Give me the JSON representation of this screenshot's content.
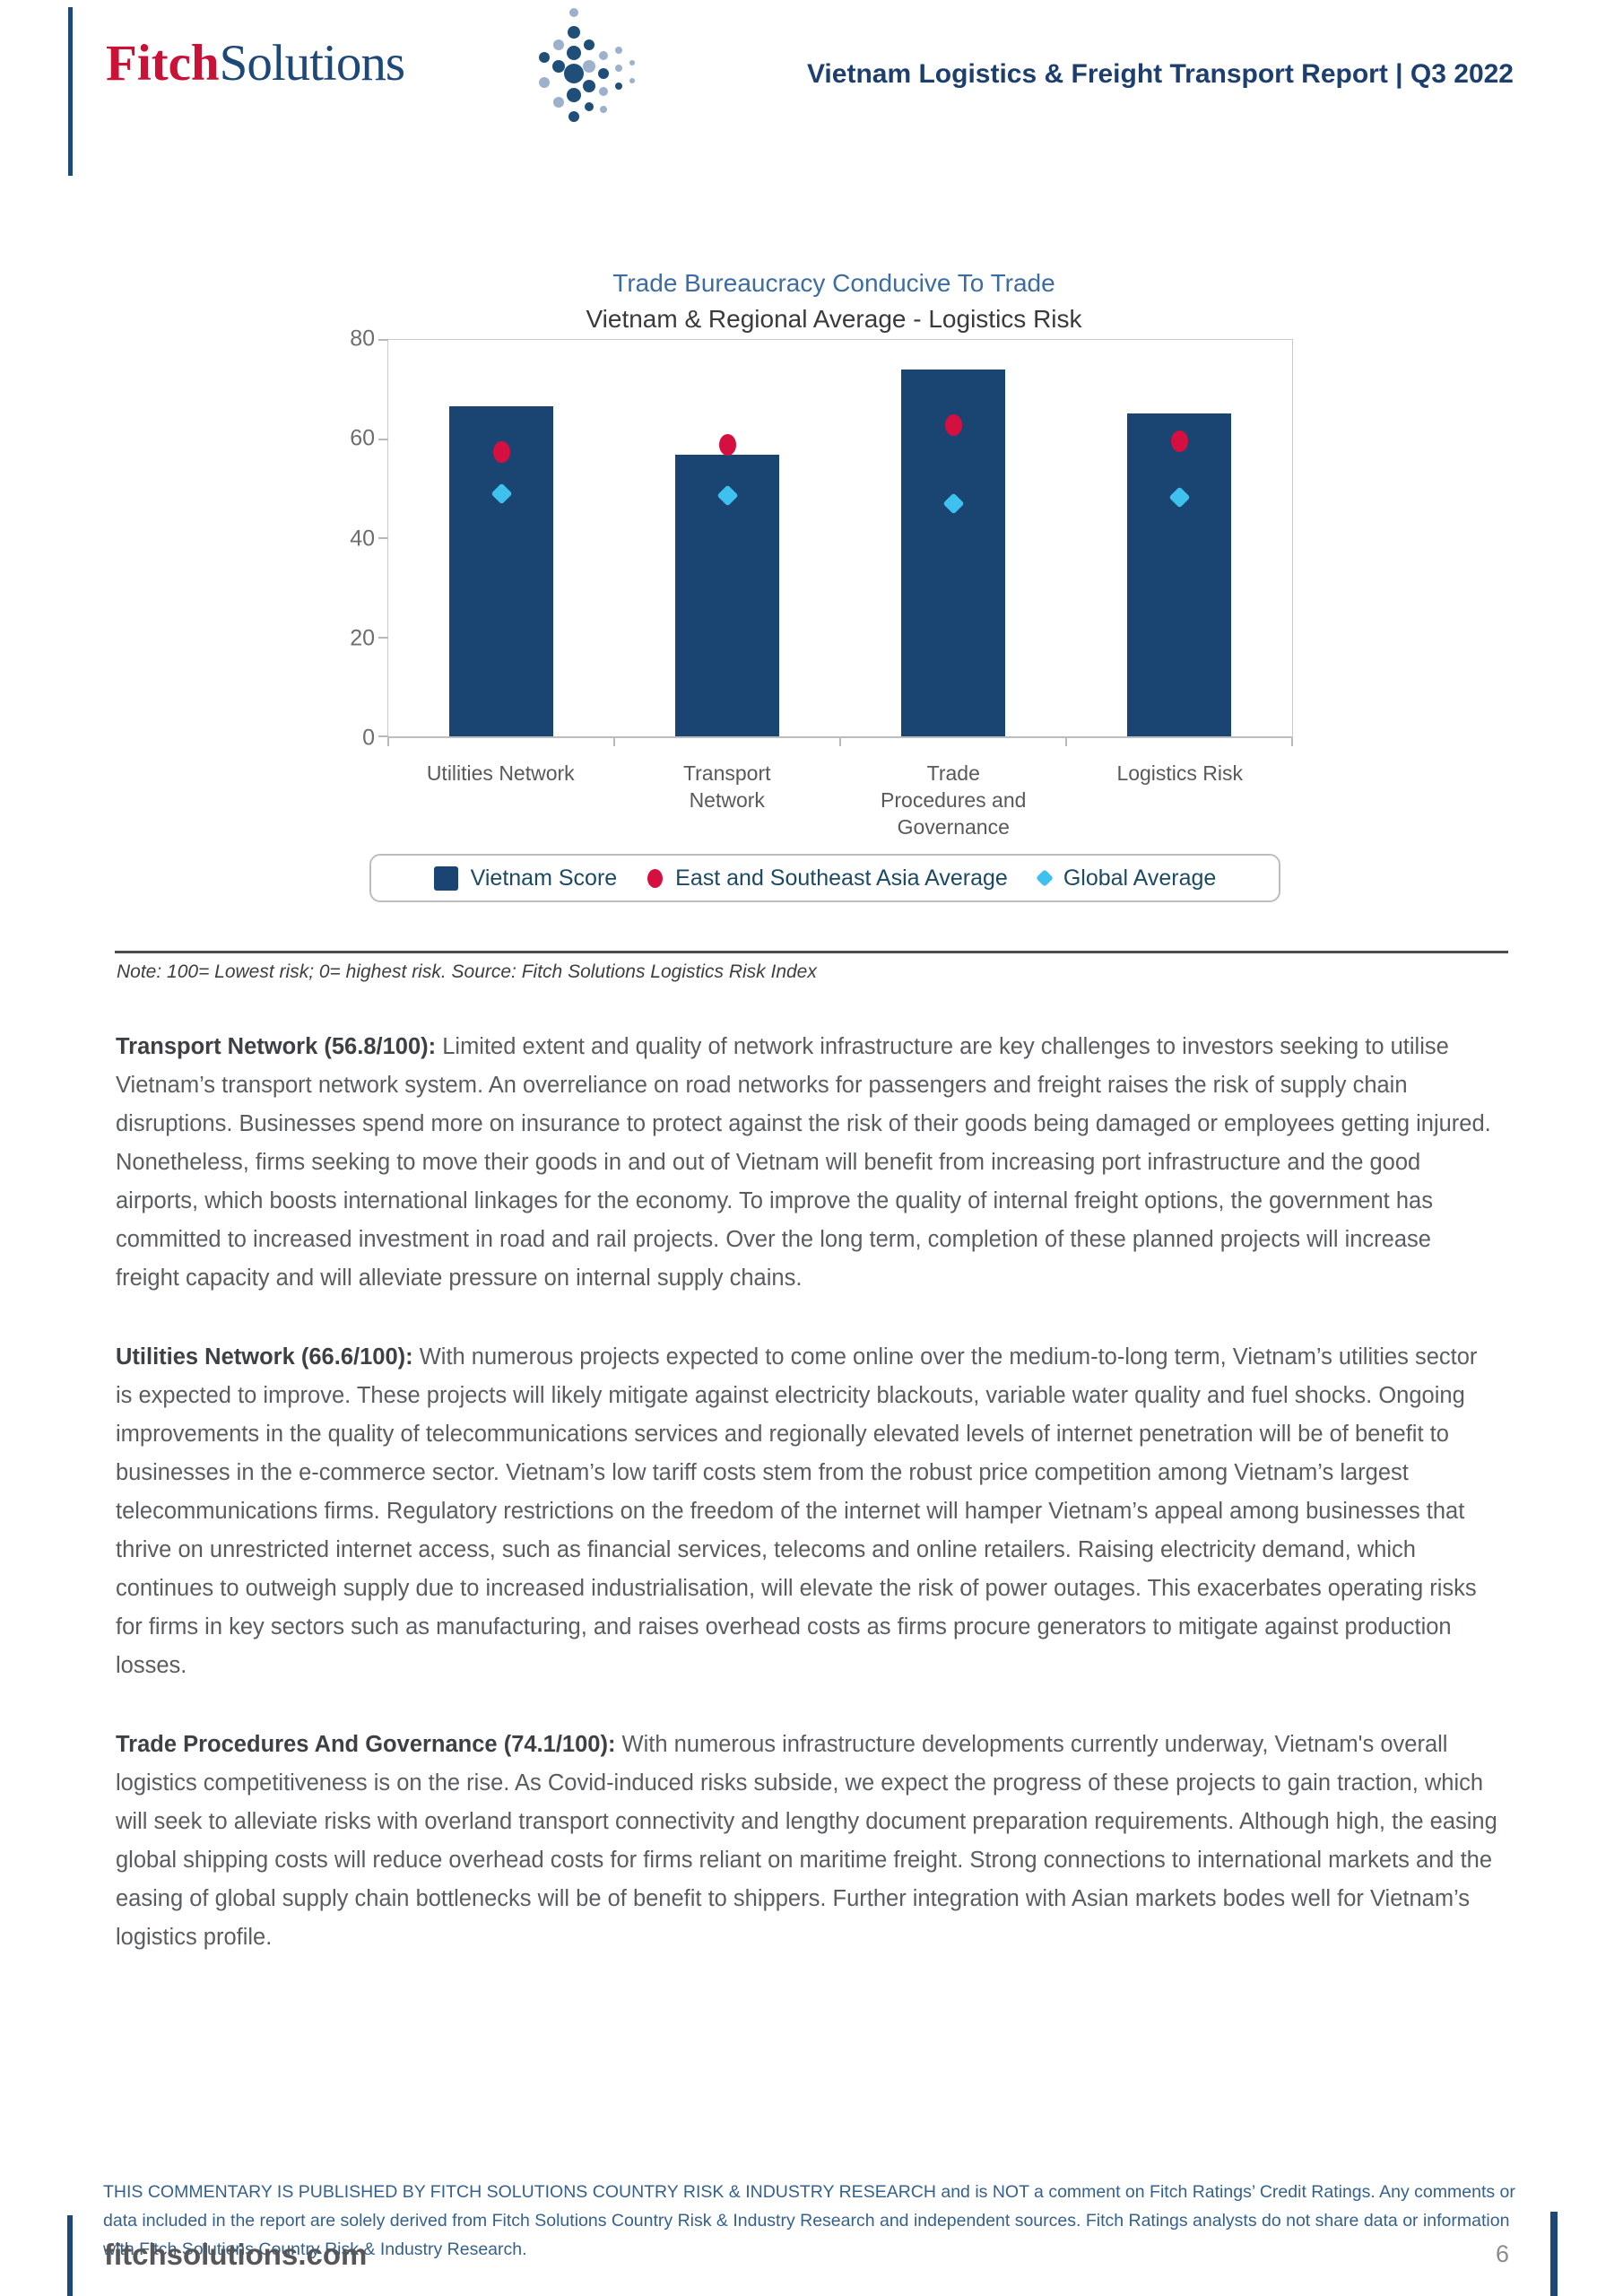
{
  "header": {
    "logo_fitch": "Fitch",
    "logo_solutions": "Solutions",
    "report_title": "Vietnam Logistics & Freight Transport Report | Q3 2022"
  },
  "chart": {
    "title": "Trade Bureaucracy Conducive To Trade",
    "subtitle": "Vietnam & Regional Average - Logistics Risk",
    "note": "Note: 100= Lowest risk; 0= highest risk. Source: Fitch Solutions Logistics Risk Index"
  },
  "chart_data": {
    "type": "bar",
    "title": "Trade Bureaucracy Conducive To Trade",
    "subtitle": "Vietnam & Regional Average - Logistics Risk",
    "categories": [
      "Utilities Network",
      "Transport\nNetwork",
      "Trade\nProcedures and\nGovernance",
      "Logistics Risk"
    ],
    "series": [
      {
        "name": "Vietnam Score",
        "type": "bar",
        "color": "#1a4573",
        "values": [
          66.6,
          56.8,
          74.1,
          65.2
        ]
      },
      {
        "name": "East and Southeast Asia Average",
        "type": "point-circle",
        "color": "#d50f3f",
        "values": [
          57.3,
          58.8,
          62.8,
          59.5
        ]
      },
      {
        "name": "Global Average",
        "type": "point-diamond",
        "color": "#3fc1ef",
        "values": [
          49.0,
          48.6,
          46.9,
          48.3
        ]
      }
    ],
    "ylim": [
      0,
      80
    ],
    "yticks": [
      0,
      20,
      40,
      60,
      80
    ],
    "legend_position": "bottom",
    "grid": false
  },
  "sections": [
    {
      "heading": "Transport Network (56.8/100):",
      "body": "Limited extent and quality of network infrastructure are key challenges to investors seeking to utilise Vietnam’s transport network system. An overreliance on road networks for passengers and freight raises the risk of supply chain disruptions. Businesses spend more on insurance to protect against the risk of their goods being damaged or employees getting injured. Nonetheless, firms seeking to move their goods in and out of Vietnam will benefit from increasing port infrastructure and the good airports, which boosts international linkages for the economy. To improve the quality of internal freight options, the government has committed to increased investment in road and rail projects. Over the long term, completion of these planned projects will increase freight capacity and will alleviate pressure on internal supply chains."
    },
    {
      "heading": "Utilities Network (66.6/100):",
      "body": "With numerous projects expected to come online over the medium-to-long term, Vietnam’s utilities sector is expected to improve. These projects will likely mitigate against electricity blackouts, variable water quality and fuel shocks. Ongoing improvements in the quality of telecommunications services and regionally elevated levels of internet penetration will be of benefit to businesses in the e-commerce sector. Vietnam’s low tariff costs stem from the robust price competition among Vietnam’s largest telecommunications firms. Regulatory restrictions on the freedom of the internet will hamper Vietnam’s appeal among businesses that thrive on unrestricted internet access, such as financial services, telecoms and online retailers. Raising electricity demand, which continues to outweigh supply due to increased industrialisation, will elevate the risk of power outages. This exacerbates operating risks for firms in key sectors such as manufacturing, and raises overhead costs as firms procure generators to mitigate against production losses."
    },
    {
      "heading": "Trade Procedures And Governance (74.1/100):",
      "body": "With numerous infrastructure developments currently underway, Vietnam's overall logistics competitiveness is on the rise. As Covid-induced risks subside, we expect the progress of these projects to gain traction, which will seek to alleviate risks with overland transport connectivity and lengthy document preparation requirements. Although high, the easing global shipping costs will reduce overhead costs for firms reliant on maritime freight. Strong connections to international markets and the easing of global supply chain bottlenecks will be of benefit to shippers. Further integration with Asian markets bodes well for Vietnam’s logistics profile."
    }
  ],
  "footer": {
    "disclaimer": "THIS COMMENTARY IS PUBLISHED BY FITCH SOLUTIONS COUNTRY RISK & INDUSTRY RESEARCH and is NOT a comment on Fitch Ratings’ Credit Ratings. Any comments or data included in the report are solely derived from Fitch Solutions Country Risk & Industry Research and independent sources. Fitch Ratings analysts do not share data or information with Fitch Solutions Country Risk & Industry Research.",
    "site": "fitchsolutions.com",
    "page_number": "6"
  }
}
